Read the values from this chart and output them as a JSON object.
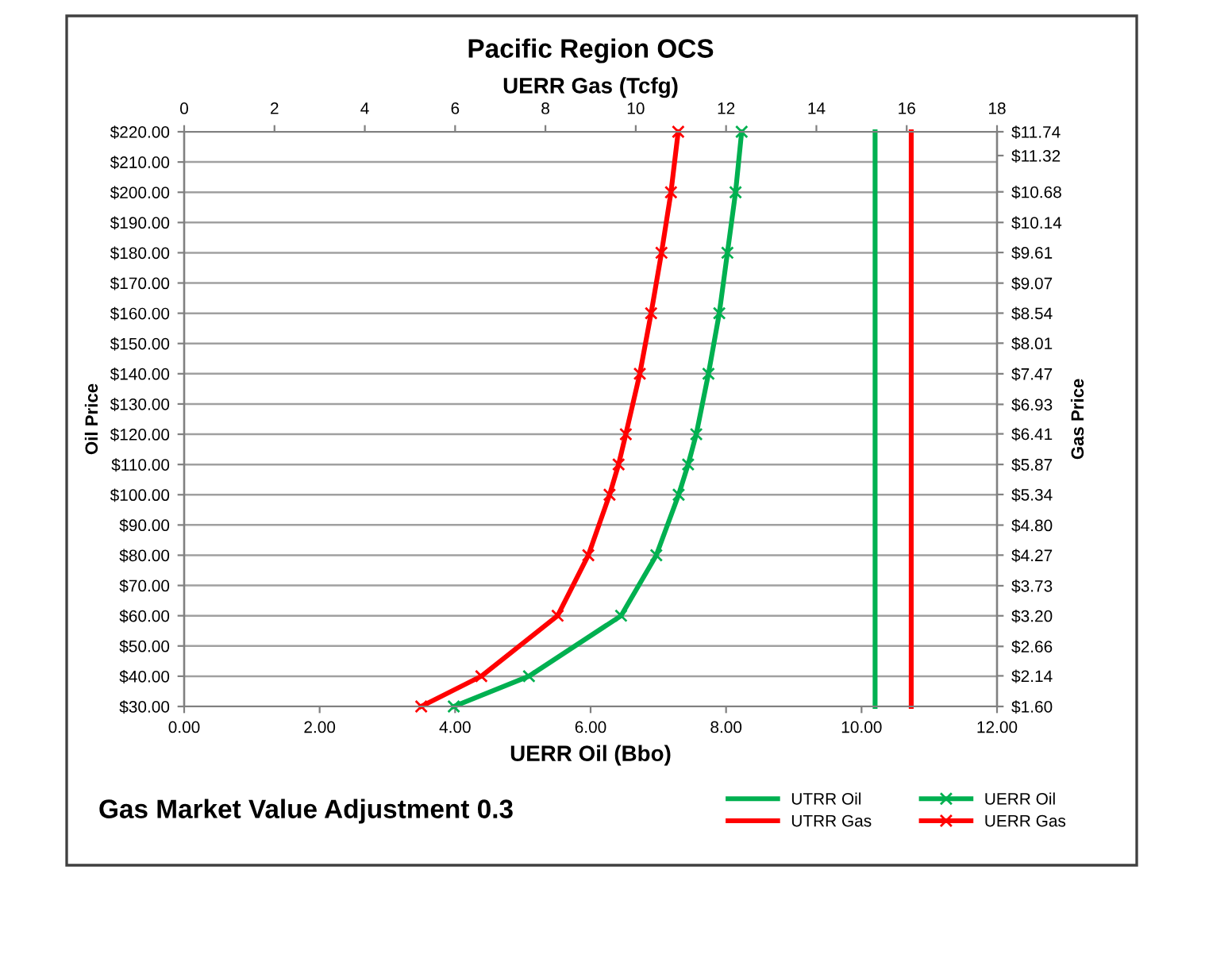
{
  "chart_data": {
    "type": "line",
    "title": "Pacific Region OCS",
    "xlabel": "UERR Oil (Bbo)",
    "x2label": "UERR Gas (Tcfg)",
    "ylabel": "Oil Price",
    "y2label": "Gas Price",
    "annotations": [
      "Gas Market Value Adjustment 0.3"
    ],
    "xlim": [
      0,
      12
    ],
    "xticks": [
      {
        "value": 0,
        "label": "0.00"
      },
      {
        "value": 2,
        "label": "2.00"
      },
      {
        "value": 4,
        "label": "4.00"
      },
      {
        "value": 6,
        "label": "6.00"
      },
      {
        "value": 8,
        "label": "8.00"
      },
      {
        "value": 10,
        "label": "10.00"
      },
      {
        "value": 12,
        "label": "12.00"
      }
    ],
    "x2lim": [
      0,
      18
    ],
    "x2ticks": [
      0,
      2,
      4,
      6,
      8,
      10,
      12,
      14,
      16,
      18
    ],
    "ylim": [
      30,
      220
    ],
    "yticks": [
      {
        "value": 30,
        "label": "$30.00"
      },
      {
        "value": 40,
        "label": "$40.00"
      },
      {
        "value": 50,
        "label": "$50.00"
      },
      {
        "value": 60,
        "label": "$60.00"
      },
      {
        "value": 70,
        "label": "$70.00"
      },
      {
        "value": 80,
        "label": "$80.00"
      },
      {
        "value": 90,
        "label": "$90.00"
      },
      {
        "value": 100,
        "label": "$100.00"
      },
      {
        "value": 110,
        "label": "$110.00"
      },
      {
        "value": 120,
        "label": "$120.00"
      },
      {
        "value": 130,
        "label": "$130.00"
      },
      {
        "value": 140,
        "label": "$140.00"
      },
      {
        "value": 150,
        "label": "$150.00"
      },
      {
        "value": 160,
        "label": "$160.00"
      },
      {
        "value": 170,
        "label": "$170.00"
      },
      {
        "value": 180,
        "label": "$180.00"
      },
      {
        "value": 190,
        "label": "$190.00"
      },
      {
        "value": 200,
        "label": "$200.00"
      },
      {
        "value": 210,
        "label": "$210.00"
      },
      {
        "value": 220,
        "label": "$220.00"
      }
    ],
    "y2lim": [
      1.6,
      11.74
    ],
    "y2ticks": [
      {
        "value": 1.6,
        "label": "$1.60"
      },
      {
        "value": 2.14,
        "label": "$2.14"
      },
      {
        "value": 2.66,
        "label": "$2.66"
      },
      {
        "value": 3.2,
        "label": "$3.20"
      },
      {
        "value": 3.73,
        "label": "$3.73"
      },
      {
        "value": 4.27,
        "label": "$4.27"
      },
      {
        "value": 4.8,
        "label": "$4.80"
      },
      {
        "value": 5.34,
        "label": "$5.34"
      },
      {
        "value": 5.87,
        "label": "$5.87"
      },
      {
        "value": 6.41,
        "label": "$6.41"
      },
      {
        "value": 6.93,
        "label": "$6.93"
      },
      {
        "value": 7.47,
        "label": "$7.47"
      },
      {
        "value": 8.01,
        "label": "$8.01"
      },
      {
        "value": 8.54,
        "label": "$8.54"
      },
      {
        "value": 9.07,
        "label": "$9.07"
      },
      {
        "value": 9.61,
        "label": "$9.61"
      },
      {
        "value": 10.14,
        "label": "$10.14"
      },
      {
        "value": 10.68,
        "label": "$10.68"
      },
      {
        "value": 11.32,
        "label": "$11.32"
      },
      {
        "value": 11.74,
        "label": "$11.74"
      }
    ],
    "grid": "y",
    "legend": "bottom right",
    "series": [
      {
        "name": "UTRR Oil",
        "color": "#00b050",
        "x": [
          10.2,
          10.2
        ],
        "values": [
          30,
          220
        ],
        "marker": "none"
      },
      {
        "name": "UERR Oil",
        "color": "#00b050",
        "x": [
          3.98,
          5.09,
          6.45,
          6.97,
          7.3,
          7.44,
          7.56,
          7.74,
          7.9,
          8.02,
          8.14,
          8.23
        ],
        "values": [
          30,
          40,
          60,
          80,
          100,
          110,
          120,
          140,
          160,
          180,
          200,
          220
        ],
        "marker": "cross"
      },
      {
        "name": "UTRR Gas",
        "color": "#ff0000",
        "axis": "x2",
        "x": [
          16.1,
          16.1
        ],
        "values": [
          30,
          220
        ],
        "marker": "none"
      },
      {
        "name": "UERR Gas",
        "color": "#ff0000",
        "axis": "x2",
        "x": [
          5.25,
          6.58,
          8.27,
          8.95,
          9.42,
          9.62,
          9.78,
          10.09,
          10.34,
          10.57,
          10.78,
          10.94
        ],
        "values": [
          30,
          40,
          60,
          80,
          100,
          110,
          120,
          140,
          160,
          180,
          200,
          220
        ],
        "marker": "cross"
      }
    ]
  }
}
